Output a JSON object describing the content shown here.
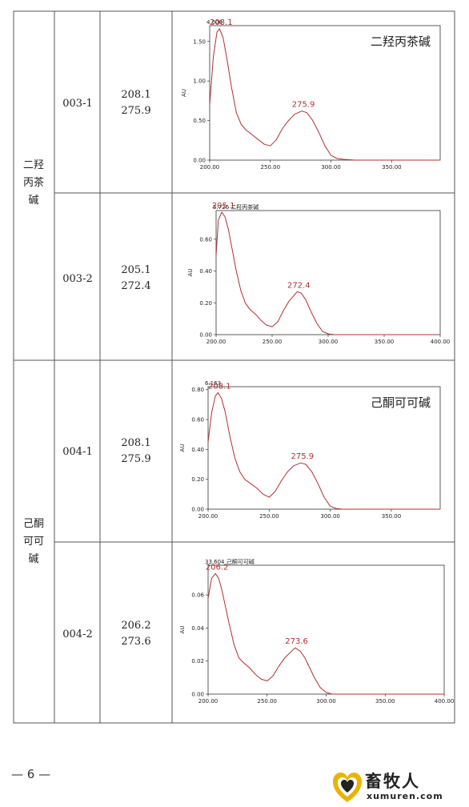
{
  "rows": [
    {
      "compound": "二羟丙茶碱",
      "compound_lines": [
        "二羟",
        "丙茶",
        "碱"
      ],
      "samples": [
        {
          "id": "003-1",
          "peaks": [
            "208.1",
            "275.9"
          ],
          "chart": {
            "header": "4.006",
            "name": "二羟丙茶碱",
            "ylabel": "AU",
            "x_ticks": [
              "200.00",
              "250.00",
              "300.00",
              "350.00"
            ],
            "y_ticks": [
              "0.00",
              "0.50",
              "1.00",
              "1.50"
            ],
            "peak_labels": [
              "208.1",
              "275.9"
            ]
          }
        },
        {
          "id": "003-2",
          "peaks": [
            "205.1",
            "272.4"
          ],
          "chart": {
            "header": "5.726 二羟丙茶碱",
            "name": "",
            "ylabel": "AU",
            "x_ticks": [
              "200.00",
              "250.00",
              "300.00",
              "350.00",
              "400.00"
            ],
            "y_ticks": [
              "0.00",
              "0.20",
              "0.40",
              "0.60"
            ],
            "peak_labels": [
              "205.1",
              "272.4"
            ]
          }
        }
      ]
    },
    {
      "compound": "己酮可可碱",
      "compound_lines": [
        "己酮",
        "可可",
        "碱"
      ],
      "samples": [
        {
          "id": "004-1",
          "peaks": [
            "208.1",
            "275.9"
          ],
          "chart": {
            "header": "6.163",
            "name": "己酮可可碱",
            "ylabel": "AU",
            "x_ticks": [
              "200.00",
              "250.00",
              "300.00",
              "350.00"
            ],
            "y_ticks": [
              "0.00",
              "0.20",
              "0.40",
              "0.60",
              "0.80"
            ],
            "peak_labels": [
              "208.1",
              "275.9"
            ]
          }
        },
        {
          "id": "004-2",
          "peaks": [
            "206.2",
            "273.6"
          ],
          "chart": {
            "header": "33.604 己酮可可碱",
            "name": "",
            "ylabel": "AU",
            "x_ticks": [
              "200.00",
              "250.00",
              "300.00",
              "350.00",
              "400.00"
            ],
            "y_ticks": [
              "0.00",
              "0.02",
              "0.04",
              "0.06"
            ],
            "peak_labels": [
              "206.2",
              "273.6"
            ]
          }
        }
      ]
    }
  ],
  "chart_data": [
    {
      "type": "line",
      "title": "二羟丙茶碱",
      "xlabel": "",
      "ylabel": "AU",
      "xlim": [
        200,
        390
      ],
      "ylim": [
        0,
        1.7
      ],
      "x": [
        200,
        203,
        206,
        208.1,
        211,
        214,
        218,
        222,
        226,
        230,
        235,
        240,
        245,
        250,
        255,
        260,
        265,
        270,
        275.9,
        280,
        285,
        290,
        295,
        300,
        305,
        310,
        320,
        340,
        360,
        390
      ],
      "series": [
        {
          "values": [
            0.7,
            1.3,
            1.62,
            1.66,
            1.55,
            1.3,
            0.92,
            0.6,
            0.45,
            0.38,
            0.32,
            0.26,
            0.2,
            0.18,
            0.26,
            0.4,
            0.5,
            0.58,
            0.62,
            0.6,
            0.5,
            0.35,
            0.18,
            0.06,
            0.02,
            0.01,
            0.0,
            0.0,
            0.0,
            0.0
          ]
        }
      ]
    },
    {
      "type": "line",
      "title": "",
      "xlabel": "",
      "ylabel": "AU",
      "xlim": [
        200,
        400
      ],
      "ylim": [
        0,
        0.78
      ],
      "x": [
        200,
        202,
        205.1,
        208,
        211,
        214,
        218,
        222,
        226,
        230,
        235,
        240,
        245,
        250,
        255,
        260,
        265,
        272.4,
        276,
        280,
        285,
        290,
        295,
        300,
        305,
        310,
        320,
        350,
        400
      ],
      "series": [
        {
          "values": [
            0.5,
            0.72,
            0.77,
            0.74,
            0.66,
            0.55,
            0.4,
            0.28,
            0.2,
            0.16,
            0.13,
            0.09,
            0.06,
            0.05,
            0.08,
            0.15,
            0.21,
            0.27,
            0.26,
            0.22,
            0.14,
            0.07,
            0.02,
            0.005,
            0.0,
            0.0,
            0.0,
            0.0,
            0.0
          ]
        }
      ]
    },
    {
      "type": "line",
      "title": "己酮可可碱",
      "xlabel": "",
      "ylabel": "AU",
      "xlim": [
        200,
        390
      ],
      "ylim": [
        0,
        0.82
      ],
      "x": [
        200,
        203,
        206,
        208.1,
        211,
        214,
        218,
        222,
        226,
        230,
        235,
        240,
        245,
        250,
        255,
        260,
        265,
        270,
        275.9,
        280,
        285,
        290,
        295,
        300,
        305,
        310,
        320,
        350,
        390
      ],
      "series": [
        {
          "values": [
            0.45,
            0.65,
            0.76,
            0.78,
            0.74,
            0.65,
            0.48,
            0.34,
            0.25,
            0.2,
            0.17,
            0.14,
            0.1,
            0.08,
            0.12,
            0.19,
            0.25,
            0.29,
            0.31,
            0.3,
            0.25,
            0.17,
            0.08,
            0.02,
            0.005,
            0.0,
            0.0,
            0.0,
            0.0
          ]
        }
      ]
    },
    {
      "type": "line",
      "title": "",
      "xlabel": "",
      "ylabel": "AU",
      "xlim": [
        200,
        400
      ],
      "ylim": [
        0,
        0.078
      ],
      "x": [
        200,
        203,
        206.2,
        209,
        212,
        215,
        218,
        222,
        226,
        230,
        235,
        240,
        245,
        250,
        255,
        260,
        265,
        273.6,
        278,
        282,
        286,
        290,
        295,
        300,
        305,
        310,
        320,
        350,
        400
      ],
      "series": [
        {
          "values": [
            0.058,
            0.07,
            0.073,
            0.07,
            0.062,
            0.052,
            0.042,
            0.03,
            0.022,
            0.019,
            0.016,
            0.012,
            0.009,
            0.008,
            0.011,
            0.017,
            0.022,
            0.028,
            0.026,
            0.022,
            0.016,
            0.01,
            0.004,
            0.001,
            0.0,
            0.0,
            0.0,
            0.0,
            0.0
          ]
        }
      ]
    }
  ],
  "footer": {
    "page": "— 6 —",
    "logo_title": "畜牧人",
    "logo_sub": "xumuren.com",
    "logo_icon": "heart-logo-icon"
  }
}
